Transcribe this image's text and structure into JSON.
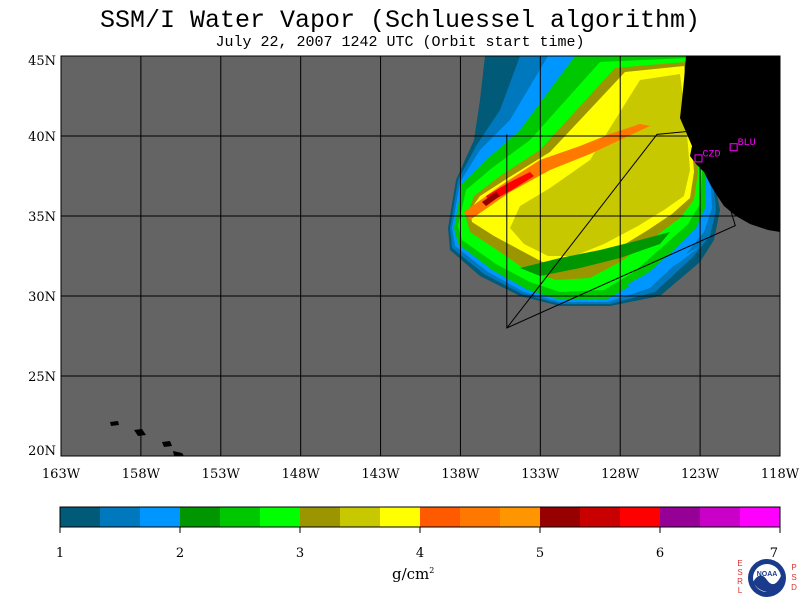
{
  "title": "SSM/I Water Vapor (Schluessel algorithm)",
  "subtitle": "July 22, 2007  1242 UTC  (Orbit start time)",
  "map": {
    "lat_labels": [
      "45N",
      "40N",
      "35N",
      "30N",
      "25N",
      "20N"
    ],
    "lat_values": [
      45,
      40,
      35,
      30,
      25,
      20
    ],
    "lon_labels": [
      "163W",
      "158W",
      "153W",
      "148W",
      "143W",
      "138W",
      "133W",
      "128W",
      "123W",
      "118W"
    ],
    "lon_values": [
      -163,
      -158,
      -153,
      -148,
      -143,
      -138,
      -133,
      -128,
      -123,
      -118
    ],
    "extent": {
      "lon": [
        -163,
        -118
      ],
      "lat": [
        20,
        45
      ]
    },
    "stations": [
      {
        "id": "CZD",
        "lon": -123.1,
        "lat": 38.6
      },
      {
        "id": "BLU",
        "lon": -120.9,
        "lat": 39.3
      }
    ],
    "domain_box": {
      "lon": [
        -135.1,
        -125.7,
        -122.6,
        -120.8,
        -135.1,
        -135.1
      ],
      "lat": [
        28.0,
        40.1,
        40.4,
        34.4,
        28.0,
        40.1
      ]
    },
    "colors": {
      "land": "#000000",
      "no_data": "#646464",
      "grid": "#000000",
      "station": "#ff00ff"
    }
  },
  "colorbar": {
    "colors": [
      "#005a78",
      "#0078be",
      "#0096ff",
      "#009600",
      "#00c800",
      "#00ff00",
      "#9b9600",
      "#c8c800",
      "#ffff00",
      "#ff5a00",
      "#ff7800",
      "#ff9600",
      "#960000",
      "#c80000",
      "#ff0000",
      "#960096",
      "#c800c8",
      "#ff00ff"
    ],
    "labels": [
      "1",
      "2",
      "3",
      "4",
      "5",
      "6",
      "7"
    ],
    "min": 1,
    "max": 7
  },
  "unit": {
    "base": "g/cm",
    "exponent": "2"
  },
  "logo": {
    "left_text": "ESRL",
    "right_text": "PSD",
    "center_text": "NOAA"
  }
}
